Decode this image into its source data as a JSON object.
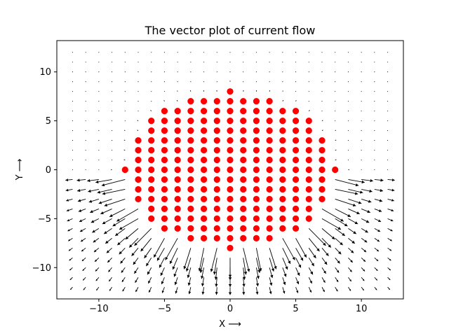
{
  "chart_data": {
    "type": "quiver-scatter",
    "title": "The vector plot of current flow",
    "xlabel": "X ⟶",
    "ylabel": "Y ⟶",
    "xlim": [
      -13.2,
      13.2
    ],
    "ylim": [
      -13.2,
      13.2
    ],
    "xticks": [
      -10,
      -5,
      0,
      5,
      10
    ],
    "yticks": [
      -10,
      -5,
      0,
      5,
      10
    ],
    "xtick_labels": [
      "−10",
      "−5",
      "0",
      "5",
      "10"
    ],
    "ytick_labels": [
      "−10",
      "−5",
      "0",
      "5",
      "10"
    ],
    "grid": false,
    "quiver_grid": {
      "x_range": [
        -12,
        12
      ],
      "y_range": [
        -12,
        12
      ],
      "step": 1
    },
    "charges": {
      "color": "#ff0000",
      "rows": [
        {
          "y": 8,
          "x_min": 0,
          "x_max": 0
        },
        {
          "y": 7,
          "x_min": -3,
          "x_max": 3
        },
        {
          "y": 6,
          "x_min": -5,
          "x_max": 5
        },
        {
          "y": 5,
          "x_min": -6,
          "x_max": 6
        },
        {
          "y": 4,
          "x_min": -6,
          "x_max": 6
        },
        {
          "y": 3,
          "x_min": -7,
          "x_max": 7
        },
        {
          "y": 2,
          "x_min": -7,
          "x_max": 7
        },
        {
          "y": 1,
          "x_min": -7,
          "x_max": 7
        },
        {
          "y": 0,
          "x_min": -8,
          "x_max": 8
        },
        {
          "y": -1,
          "x_min": -7,
          "x_max": 7
        },
        {
          "y": -2,
          "x_min": -7,
          "x_max": 7
        },
        {
          "y": -3,
          "x_min": -7,
          "x_max": 7
        },
        {
          "y": -4,
          "x_min": -6,
          "x_max": 6
        },
        {
          "y": -5,
          "x_min": -6,
          "x_max": 6
        },
        {
          "y": -6,
          "x_min": -5,
          "x_max": 5
        },
        {
          "y": -7,
          "x_min": -3,
          "x_max": 3
        },
        {
          "y": -8,
          "x_min": 0,
          "x_max": 0
        }
      ]
    },
    "field": {
      "description_note": "vectors point away from the charge region toward -y, strongest below the cluster",
      "arrow_color": "#000000"
    }
  }
}
